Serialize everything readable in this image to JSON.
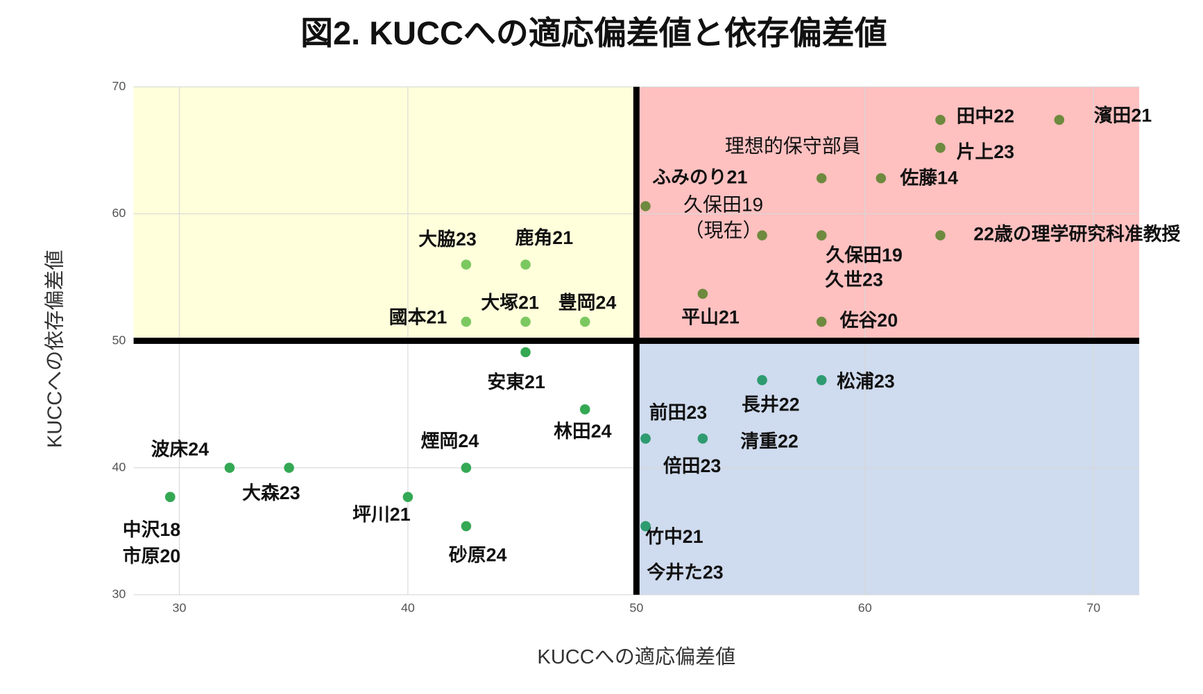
{
  "chart_data": {
    "type": "scatter",
    "title": "図2. KUCCへの適応偏差値と依存偏差値",
    "x_label": "KUCCへの適応偏差値",
    "y_label": "KUCCへの依存偏差値",
    "xlim": [
      28,
      72
    ],
    "ylim": [
      30,
      70
    ],
    "xticks": [
      30,
      40,
      50,
      60,
      70
    ],
    "yticks": [
      30,
      40,
      50,
      60,
      70
    ],
    "grid": true,
    "quadrant_split": [
      50,
      50
    ],
    "quadrant_colors": {
      "top_left": "#ffffdb",
      "top_right": "#ffc0c0",
      "bottom_left": "#ffffff",
      "bottom_right": "#cfdbee"
    },
    "series": [
      {
        "color": "#6e8a3e",
        "x": [
          63.3,
          68.5,
          63.3,
          58.1,
          60.7,
          50.4,
          55.5,
          58.1,
          58.1,
          63.3,
          52.9,
          58.1
        ],
        "y": [
          67.4,
          67.4,
          65.2,
          62.8,
          62.8,
          60.6,
          58.3,
          58.3,
          58.3,
          58.3,
          53.7,
          51.5
        ],
        "labels": [
          "田中22",
          "濱田21",
          "片上23",
          "理想的保守部員",
          "佐藤14",
          "ふみのり21",
          [
            "久保田19",
            "（現在）"
          ],
          "久保田19",
          "久世23",
          "22歳の理学研究科准教授",
          "平山21",
          "佐谷20"
        ]
      },
      {
        "color": "#7cc860",
        "x": [
          42.55,
          45.15,
          42.55,
          45.15,
          47.75
        ],
        "y": [
          56.0,
          56.0,
          51.5,
          51.5,
          51.5
        ],
        "labels": [
          "大脇23",
          "鹿角21",
          "國本21",
          "大塚21",
          "豊岡24"
        ]
      },
      {
        "color": "#34a853",
        "x": [
          45.15,
          47.75,
          42.55,
          42.55,
          40.0,
          32.2,
          34.8,
          29.6,
          29.6
        ],
        "y": [
          49.1,
          44.6,
          40.0,
          35.4,
          37.7,
          40.0,
          40.0,
          37.7,
          37.7
        ],
        "labels": [
          "安東21",
          "林田24",
          "煙岡24",
          "砂原24",
          "坪川21",
          "波床24",
          "大森23",
          "中沢18",
          "市原20"
        ]
      },
      {
        "color": "#2e9b70",
        "x": [
          50.4,
          50.4,
          52.9,
          55.5,
          58.1,
          50.4,
          50.4
        ],
        "y": [
          42.3,
          42.3,
          42.3,
          46.9,
          46.9,
          35.4,
          35.4
        ],
        "labels": [
          "前田23",
          "倍田23",
          "清重22",
          "長井22",
          "松浦23",
          "竹中21",
          "今井た23"
        ]
      }
    ]
  }
}
